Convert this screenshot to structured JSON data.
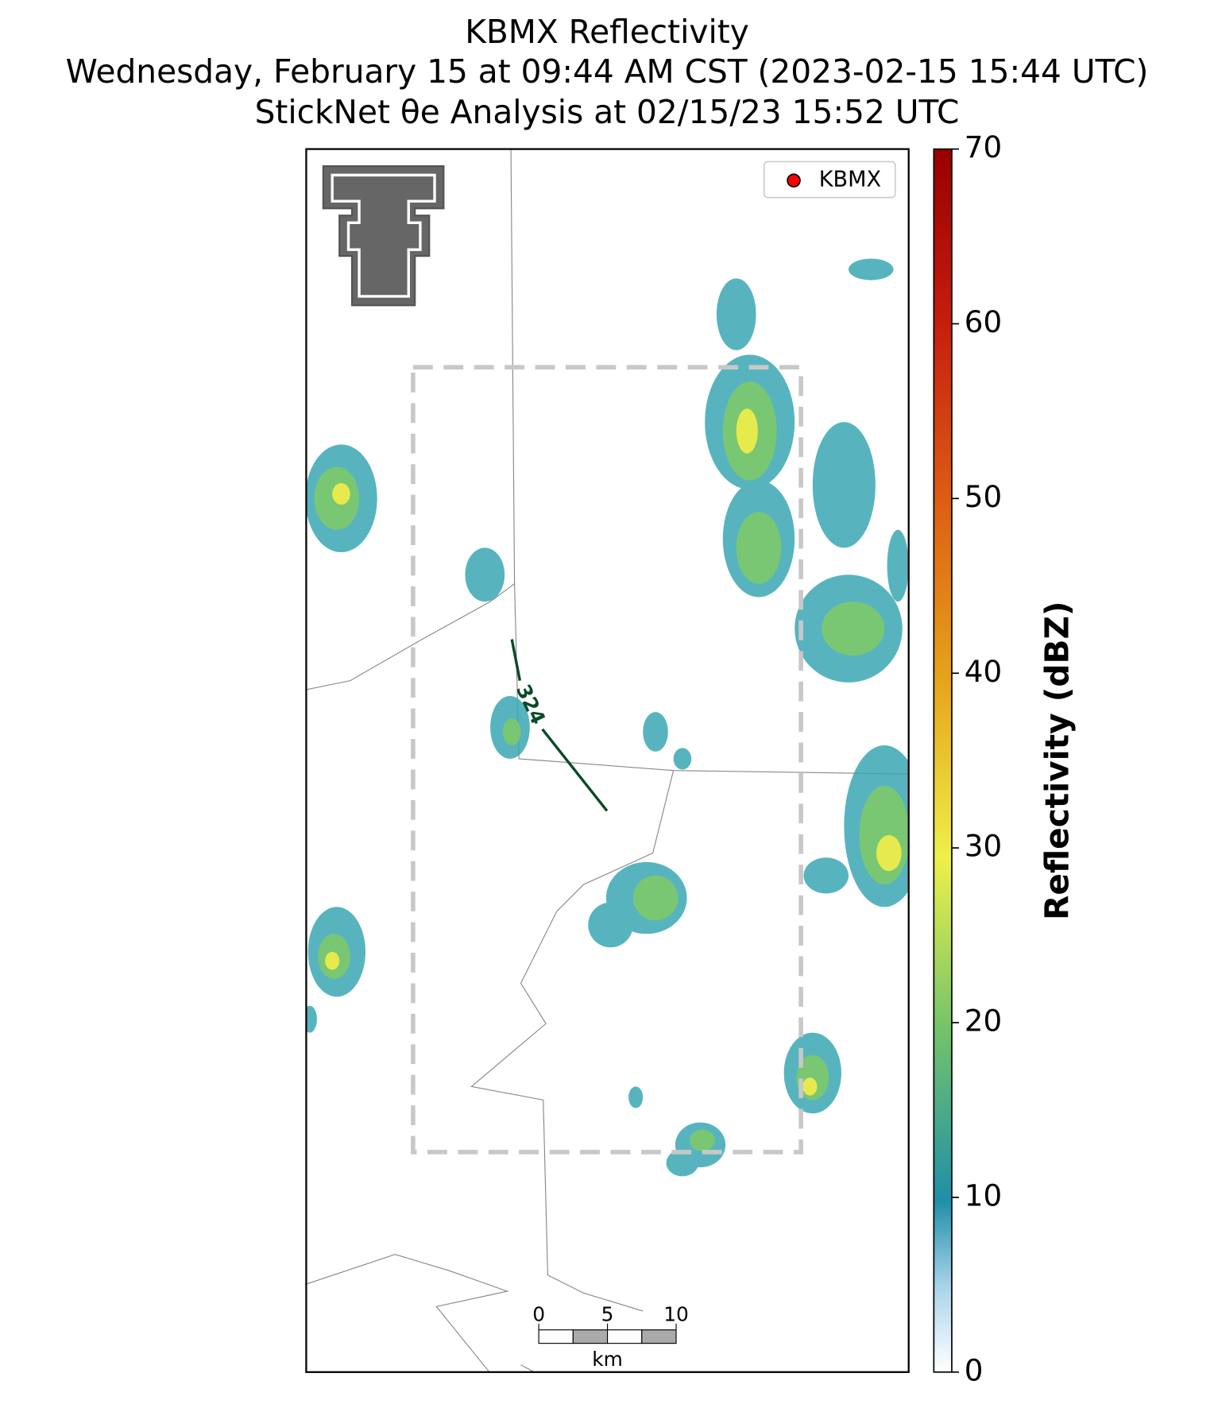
{
  "title": [
    "KBMX Reflectivity",
    "Wednesday, February 15 at 09:44 AM CST (2023-02-15 15:44 UTC)",
    "StickNet θe Analysis at 02/15/23 15:52 UTC"
  ],
  "legend": {
    "label": "KBMX"
  },
  "colorbar": {
    "label": "Reflectivity (dBZ)",
    "lim": [
      0,
      70
    ],
    "ticks": [
      0,
      10,
      20,
      30,
      40,
      50,
      60,
      70
    ]
  },
  "contour_label": "324",
  "scale_bar": {
    "ticks": [
      0,
      5,
      10
    ],
    "unit": "km"
  }
}
